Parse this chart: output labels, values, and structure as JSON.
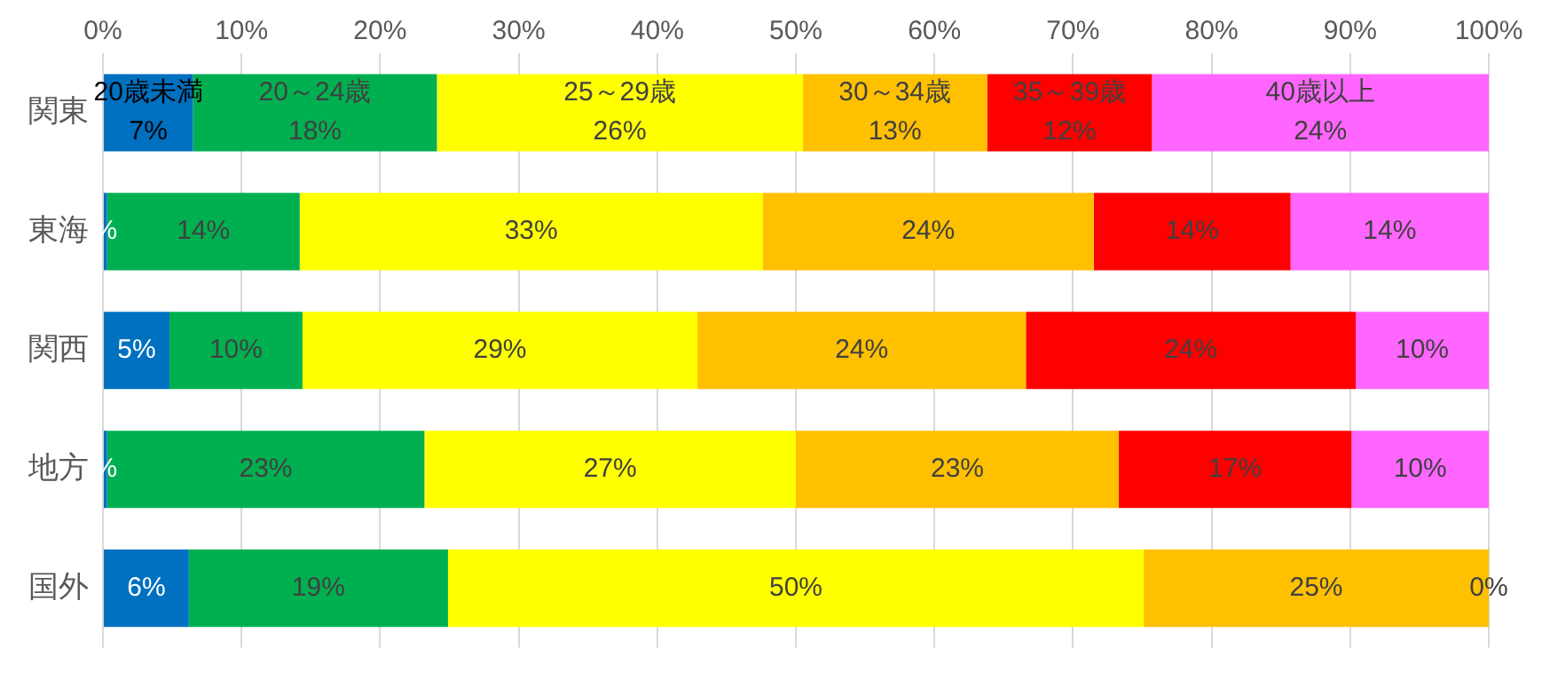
{
  "chart_data": {
    "type": "bar",
    "orientation": "horizontal",
    "stacked": true,
    "categories": [
      "関東",
      "東海",
      "関西",
      "地方",
      "国外"
    ],
    "series": [
      {
        "name": "20歳未満",
        "color": "#0070c0",
        "values": [
          6.5,
          0.3,
          4.8,
          0.3,
          6.2
        ],
        "value_labels": [
          "7%",
          "%",
          "5%",
          "%",
          "6%"
        ]
      },
      {
        "name": "20～24歳",
        "color": "#00b050",
        "values": [
          17.6,
          13.9,
          9.6,
          22.9,
          18.7
        ],
        "value_labels": [
          "18%",
          "14%",
          "10%",
          "23%",
          "19%"
        ]
      },
      {
        "name": "25～29歳",
        "color": "#ffff00",
        "values": [
          26.4,
          33.4,
          28.5,
          26.8,
          50.2
        ],
        "value_labels": [
          "26%",
          "33%",
          "29%",
          "27%",
          "50%"
        ]
      },
      {
        "name": "30～34歳",
        "color": "#ffc000",
        "values": [
          13.3,
          23.9,
          23.7,
          23.3,
          24.9
        ],
        "value_labels": [
          "13%",
          "24%",
          "24%",
          "23%",
          "25%"
        ]
      },
      {
        "name": "35～39歳",
        "color": "#ff0000",
        "values": [
          11.9,
          14.2,
          23.8,
          16.8,
          0
        ],
        "value_labels": [
          "12%",
          "14%",
          "24%",
          "17%",
          "0%"
        ]
      },
      {
        "name": "40歳以上",
        "color": "#ff66ff",
        "values": [
          24.3,
          14.3,
          9.6,
          9.9,
          0
        ],
        "value_labels": [
          "24%",
          "14%",
          "10%",
          "10%",
          null
        ]
      }
    ],
    "xlim": [
      0,
      100
    ],
    "xticks": [
      {
        "value": 0,
        "label": "0%"
      },
      {
        "value": 10,
        "label": "10%"
      },
      {
        "value": 20,
        "label": "20%"
      },
      {
        "value": 30,
        "label": "30%"
      },
      {
        "value": 40,
        "label": "40%"
      },
      {
        "value": 50,
        "label": "50%"
      },
      {
        "value": 60,
        "label": "60%"
      },
      {
        "value": 70,
        "label": "70%"
      },
      {
        "value": 80,
        "label": "80%"
      },
      {
        "value": 90,
        "label": "90%"
      },
      {
        "value": 100,
        "label": "100%"
      }
    ],
    "grid": "x",
    "legend": false
  }
}
